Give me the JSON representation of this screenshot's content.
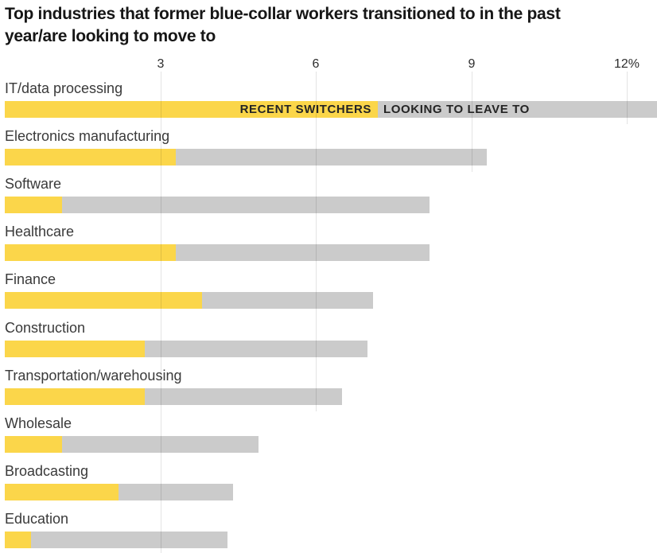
{
  "header": {
    "title_line1": "Top industries that former blue-collar workers transitioned to in the past",
    "title_line2": "year/are looking to move to"
  },
  "legend": {
    "recent_label": "RECENT SWITCHERS",
    "looking_label": "LOOKING TO LEAVE TO"
  },
  "colors": {
    "recent": "#fbd64a",
    "looking": "#cbcbcb",
    "title_text": "#161616",
    "label_text": "#3a3a3a"
  },
  "axis": {
    "ticks": [
      {
        "label": "3",
        "value": 3
      },
      {
        "label": "6",
        "value": 6
      },
      {
        "label": "9",
        "value": 9
      },
      {
        "label": "12%",
        "value": 12
      }
    ]
  },
  "chart_data": {
    "type": "bar",
    "orientation": "horizontal",
    "stacked": true,
    "title": "Top industries that former blue-collar workers transitioned to in the past year/are looking to move to",
    "units": "%",
    "categories": [
      "IT/data processing",
      "Electronics manufacturing",
      "Software",
      "Healthcare",
      "Finance",
      "Construction",
      "Transportation/warehousing",
      "Wholesale",
      "Broadcasting",
      "Education"
    ],
    "series": [
      {
        "name": "RECENT SWITCHERS",
        "color": "#fbd64a",
        "values": [
          7.2,
          3.3,
          1.1,
          3.3,
          3.8,
          2.7,
          2.7,
          1.1,
          2.2,
          0.5
        ]
      },
      {
        "name": "LOOKING TO LEAVE TO",
        "color": "#cbcbcb",
        "values": [
          5.4,
          6.0,
          7.1,
          4.9,
          3.3,
          4.3,
          3.8,
          3.8,
          2.2,
          3.8
        ]
      }
    ],
    "totals": [
      12.6,
      9.3,
      8.2,
      8.2,
      7.1,
      7.0,
      6.5,
      4.9,
      4.4,
      4.3
    ],
    "xlim": [
      0,
      12.6
    ],
    "x_ticks": [
      3,
      6,
      9,
      12
    ],
    "x_tick_labels": [
      "3",
      "6",
      "9",
      "12%"
    ],
    "grid": true,
    "legend_position": "inside-first-bar"
  }
}
